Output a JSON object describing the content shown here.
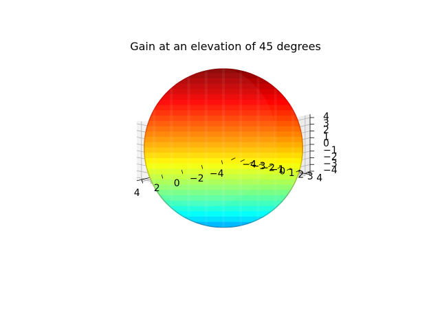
{
  "chart_data": {
    "type": "surface3d",
    "title": "Gain at an elevation of 45 degrees",
    "xlabel": "",
    "ylabel": "",
    "zlabel": "",
    "grid": true,
    "colormap": "jet",
    "xlim": [
      -4.5,
      4.5
    ],
    "ylim": [
      -4.5,
      4.5
    ],
    "zlim": [
      -4.5,
      4.5
    ],
    "x_ticks": [
      -4,
      -2,
      0,
      2,
      4
    ],
    "y_ticks": [
      -4,
      -3,
      -2,
      -1,
      0,
      1,
      2,
      3,
      4
    ],
    "z_ticks": [
      -4,
      -3,
      -2,
      -1,
      0,
      1,
      2,
      3,
      4
    ],
    "x_tick_labels": [
      "−4",
      "−2",
      "0",
      "2",
      "4"
    ],
    "y_tick_labels": [
      "−4",
      "−3",
      "−2",
      "−1",
      "0",
      "1",
      "2",
      "3",
      "4"
    ],
    "z_tick_labels": [
      "−4",
      "−3",
      "−2",
      "−1",
      "0",
      "1",
      "2",
      "3",
      "4"
    ],
    "surface": {
      "shape": "sphere",
      "center": [
        0,
        0,
        0
      ],
      "radius": 4.0,
      "z_min": -4.0,
      "z_max": 4.0
    }
  }
}
